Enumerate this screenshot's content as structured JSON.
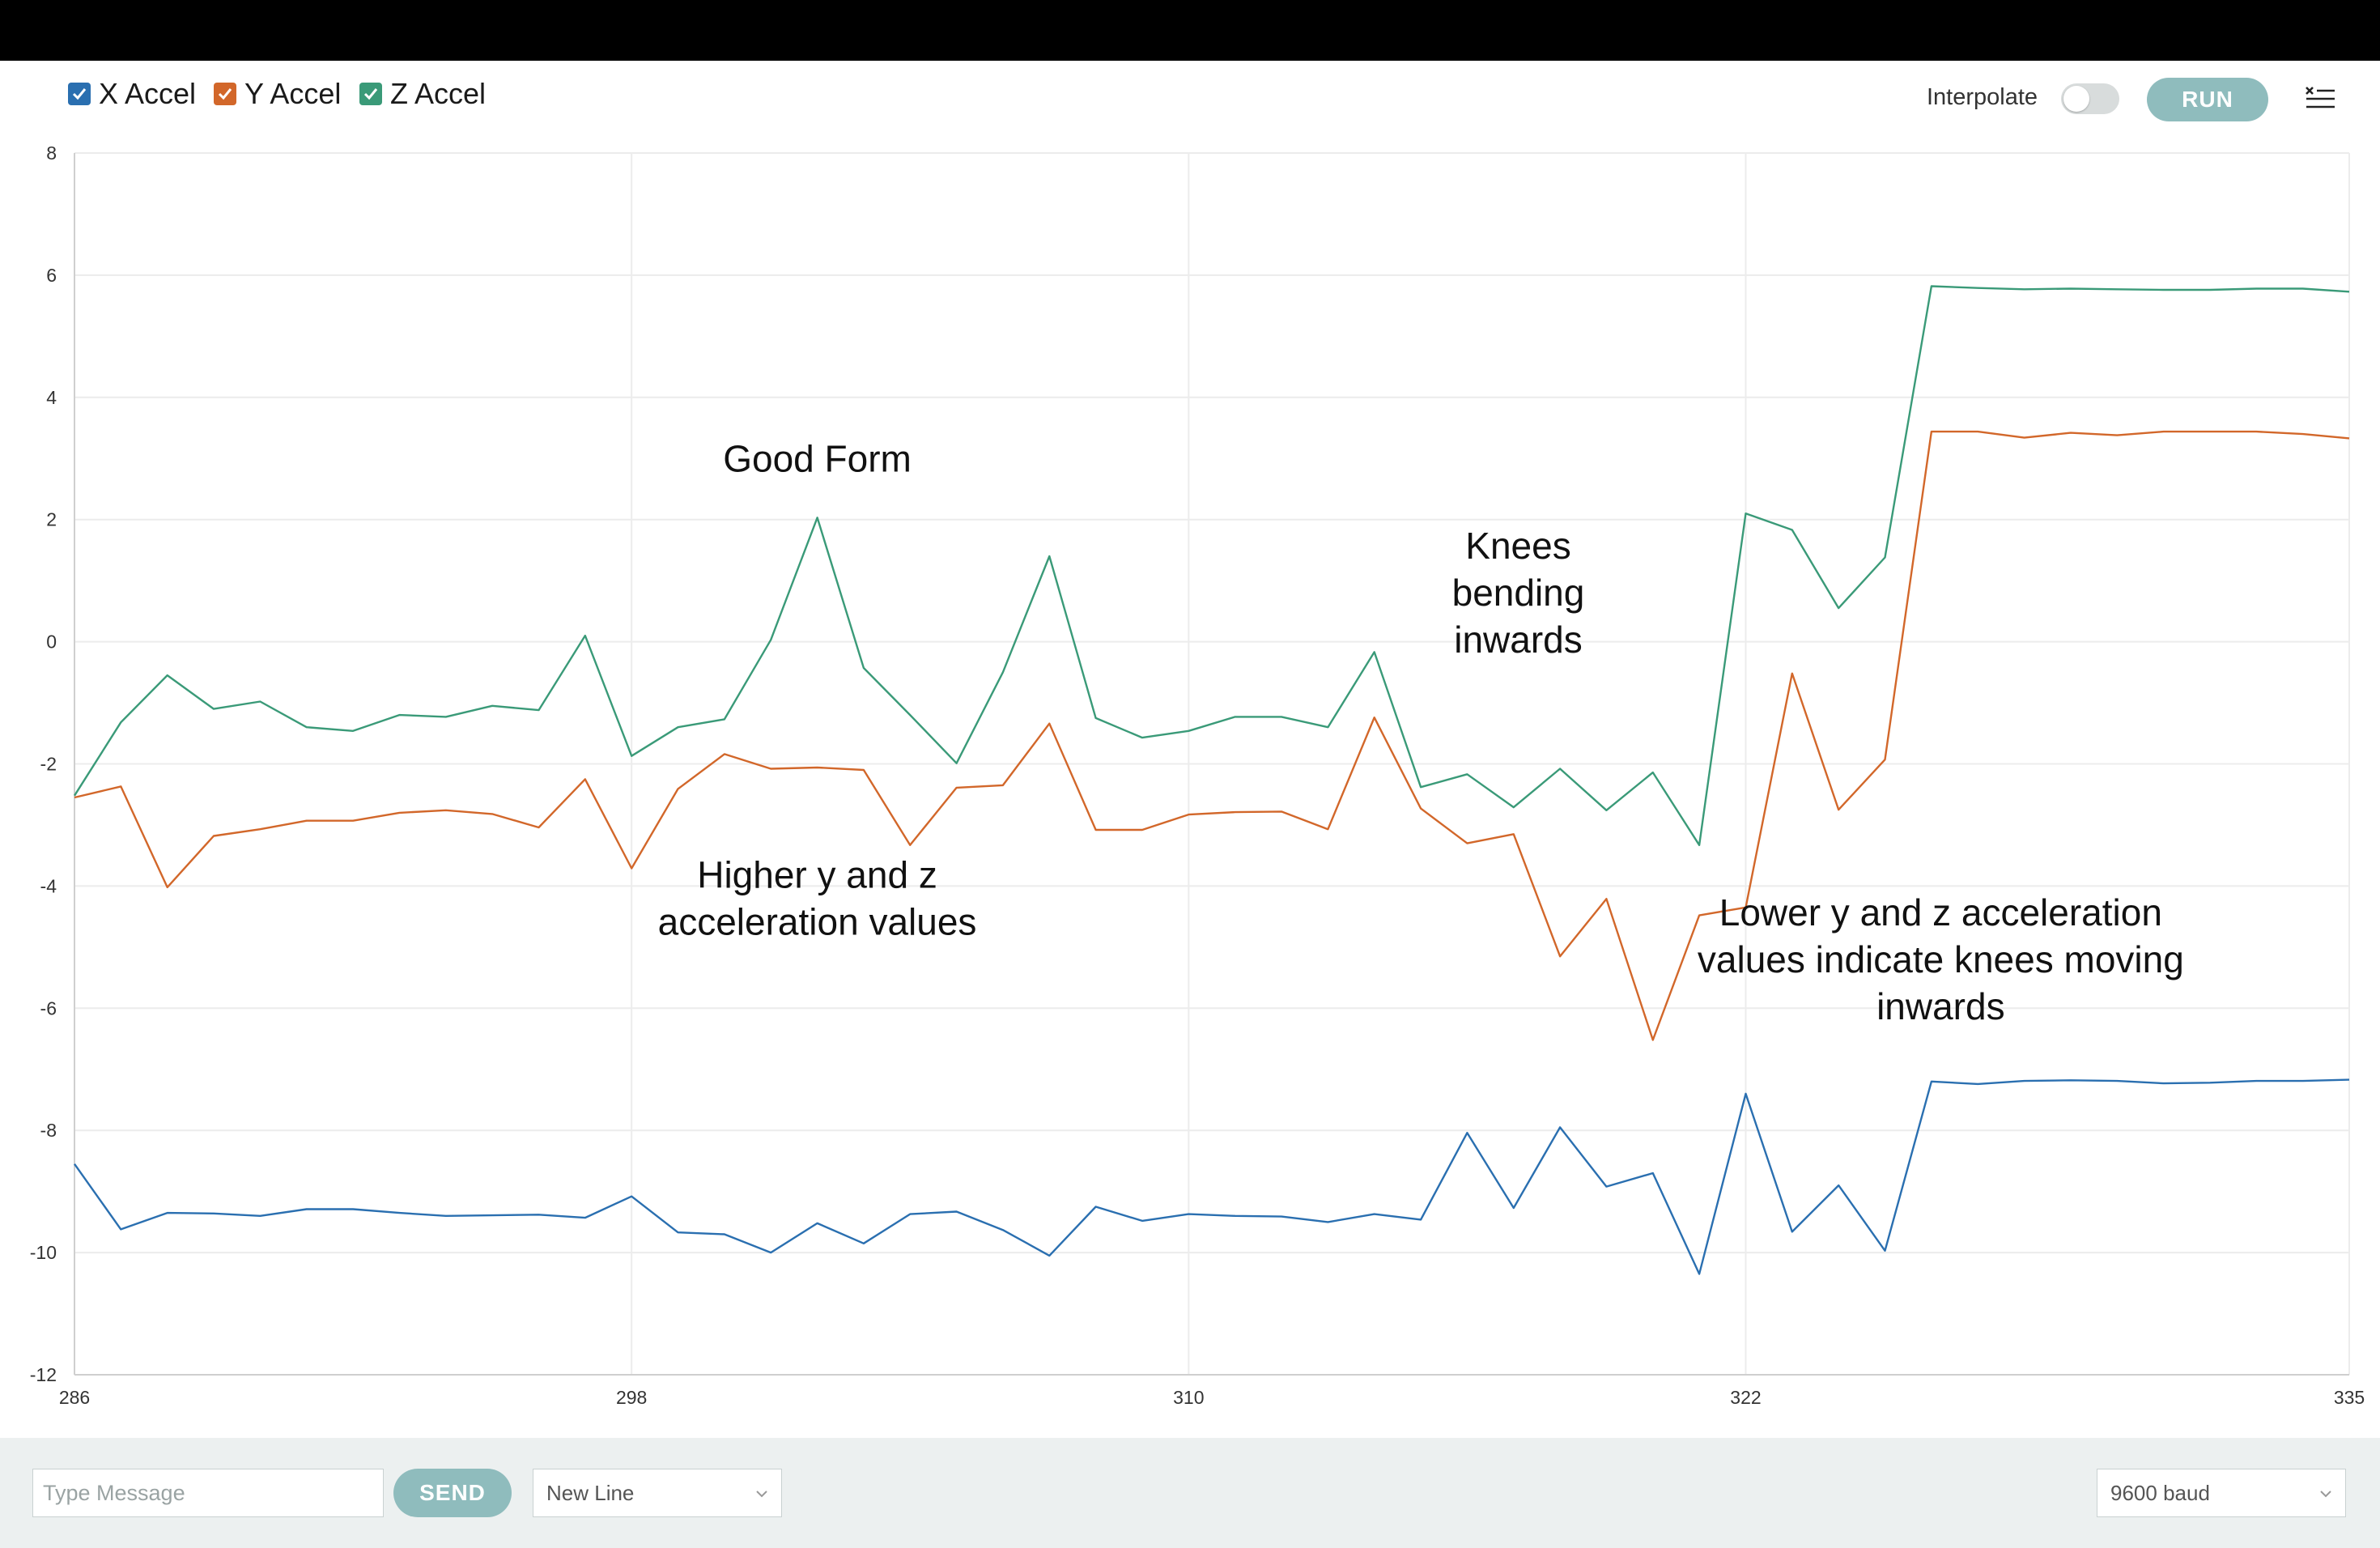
{
  "legend": [
    {
      "label": "X Accel",
      "color": "#2a6fb0",
      "checked": true
    },
    {
      "label": "Y Accel",
      "color": "#d2672a",
      "checked": true
    },
    {
      "label": "Z Accel",
      "color": "#3a9a78",
      "checked": true
    }
  ],
  "toolbar": {
    "interpolate_label": "Interpolate",
    "interpolate_on": false,
    "run_label": "RUN",
    "menu_icon": "clear-output-icon"
  },
  "bottom": {
    "message_placeholder": "Type Message",
    "send_label": "SEND",
    "line_ending": "New Line",
    "baud": "9600 baud"
  },
  "chart_data": {
    "type": "line",
    "title": "",
    "xlabel": "",
    "ylabel": "",
    "xlim": [
      286,
      335
    ],
    "ylim": [
      -12,
      8
    ],
    "x_ticks": [
      286,
      298,
      310,
      322,
      335
    ],
    "y_ticks": [
      8,
      6,
      4,
      2,
      0,
      -2,
      -4,
      -6,
      -8,
      -10,
      -12
    ],
    "grid": true,
    "x": [
      286,
      287,
      288,
      289,
      290,
      291,
      292,
      293,
      294,
      295,
      296,
      297,
      298,
      299,
      300,
      301,
      302,
      303,
      304,
      305,
      306,
      307,
      308,
      309,
      310,
      311,
      312,
      313,
      314,
      315,
      316,
      317,
      318,
      319,
      320,
      321,
      322,
      323,
      324,
      325,
      326,
      327,
      328,
      329,
      330,
      331,
      332,
      333,
      334,
      335
    ],
    "series": [
      {
        "name": "X Accel",
        "color": "#2a6fb0",
        "values": [
          -8.55,
          -9.62,
          -9.35,
          -9.36,
          -9.4,
          -9.29,
          -9.29,
          -9.35,
          -9.4,
          -9.39,
          -9.38,
          -9.43,
          -9.08,
          -9.67,
          -9.7,
          -10.0,
          -9.52,
          -9.85,
          -9.37,
          -9.33,
          -9.63,
          -10.05,
          -9.25,
          -9.48,
          -9.37,
          -9.4,
          -9.41,
          -9.5,
          -9.37,
          -9.46,
          -8.04,
          -9.27,
          -7.95,
          -8.92,
          -8.7,
          -10.35,
          -7.4,
          -9.66,
          -8.9,
          -9.97,
          -7.2,
          -7.24,
          -7.19,
          -7.18,
          -7.19,
          -7.23,
          -7.22,
          -7.19,
          -7.19,
          -7.17
        ]
      },
      {
        "name": "Y Accel",
        "color": "#d2672a",
        "values": [
          -2.55,
          -2.37,
          -4.02,
          -3.18,
          -3.07,
          -2.93,
          -2.93,
          -2.8,
          -2.76,
          -2.82,
          -3.04,
          -2.25,
          -3.71,
          -2.41,
          -1.84,
          -2.08,
          -2.06,
          -2.1,
          -3.33,
          -2.39,
          -2.35,
          -1.34,
          -3.08,
          -3.08,
          -2.83,
          -2.79,
          -2.78,
          -3.07,
          -1.24,
          -2.73,
          -3.3,
          -3.15,
          -5.15,
          -4.21,
          -6.52,
          -4.48,
          -4.35,
          -0.52,
          -2.75,
          -1.93,
          3.44,
          3.44,
          3.34,
          3.42,
          3.38,
          3.44,
          3.44,
          3.44,
          3.4,
          3.33
        ]
      },
      {
        "name": "Z Accel",
        "color": "#3a9a78",
        "values": [
          -2.52,
          -1.32,
          -0.55,
          -1.1,
          -0.98,
          -1.4,
          -1.46,
          -1.2,
          -1.23,
          -1.05,
          -1.12,
          0.1,
          -1.87,
          -1.4,
          -1.27,
          0.03,
          2.03,
          -0.43,
          -1.2,
          -1.99,
          -0.5,
          1.4,
          -1.25,
          -1.57,
          -1.46,
          -1.23,
          -1.23,
          -1.4,
          -0.17,
          -2.38,
          -2.17,
          -2.71,
          -2.08,
          -2.76,
          -2.14,
          -3.33,
          2.1,
          1.83,
          0.55,
          1.38,
          5.82,
          5.79,
          5.77,
          5.78,
          5.77,
          5.76,
          5.76,
          5.78,
          5.78,
          5.73
        ]
      }
    ],
    "annotations": [
      {
        "lines": [
          "Good Form"
        ],
        "x": 302,
        "y": 3.0
      },
      {
        "lines": [
          "Higher y and z",
          "acceleration values"
        ],
        "x": 302,
        "y": -4.2
      },
      {
        "lines": [
          "Knees",
          "bending",
          "inwards"
        ],
        "x": 317.1,
        "y": 0.8
      },
      {
        "lines": [
          "Lower y and z acceleration",
          "values indicate knees moving",
          "inwards"
        ],
        "x": 326.2,
        "y": -5.2
      }
    ]
  }
}
